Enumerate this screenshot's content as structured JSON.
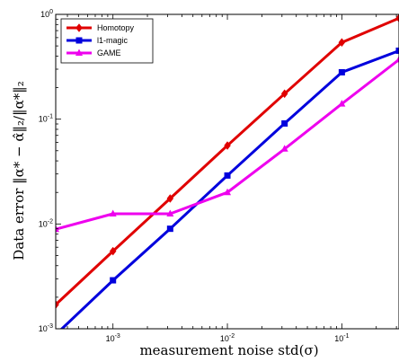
{
  "chart_data": {
    "type": "line",
    "xscale": "log",
    "yscale": "log",
    "xlim": [
      0.000316,
      0.316
    ],
    "ylim": [
      0.001,
      1
    ],
    "x_ticks": [
      0.001,
      0.01,
      0.1
    ],
    "y_ticks": [
      0.001,
      0.01,
      0.1,
      1
    ],
    "x_tick_labels": [
      {
        "base": "10",
        "exp": "-3"
      },
      {
        "base": "10",
        "exp": "-2"
      },
      {
        "base": "10",
        "exp": "-1"
      }
    ],
    "y_tick_labels": [
      {
        "base": "10",
        "exp": "-3"
      },
      {
        "base": "10",
        "exp": "-2"
      },
      {
        "base": "10",
        "exp": "-1"
      },
      {
        "base": "10",
        "exp": "0"
      }
    ],
    "xlabel": "measurement noise std(σ)",
    "ylabel": "Data error ‖α* − α̂‖₂/‖α*‖₂",
    "grid": false,
    "legend_position": "top-left",
    "series": [
      {
        "name": "Homotopy",
        "color": "#e00000",
        "marker": "diamond",
        "x": [
          0.000316,
          0.001,
          0.00316,
          0.01,
          0.0316,
          0.1,
          0.316
        ],
        "y": [
          0.0017,
          0.0055,
          0.0175,
          0.056,
          0.175,
          0.54,
          0.92
        ]
      },
      {
        "name": "l1-magic",
        "color": "#0000dd",
        "marker": "square",
        "x": [
          0.000316,
          0.001,
          0.00316,
          0.01,
          0.0316,
          0.1,
          0.316
        ],
        "y": [
          0.00088,
          0.0029,
          0.009,
          0.029,
          0.091,
          0.28,
          0.45
        ]
      },
      {
        "name": "GAME",
        "color": "#ee00ee",
        "marker": "triangle",
        "x": [
          0.000316,
          0.001,
          0.00316,
          0.01,
          0.0316,
          0.1,
          0.316
        ],
        "y": [
          0.0089,
          0.0125,
          0.0125,
          0.02,
          0.052,
          0.14,
          0.37
        ]
      }
    ]
  }
}
